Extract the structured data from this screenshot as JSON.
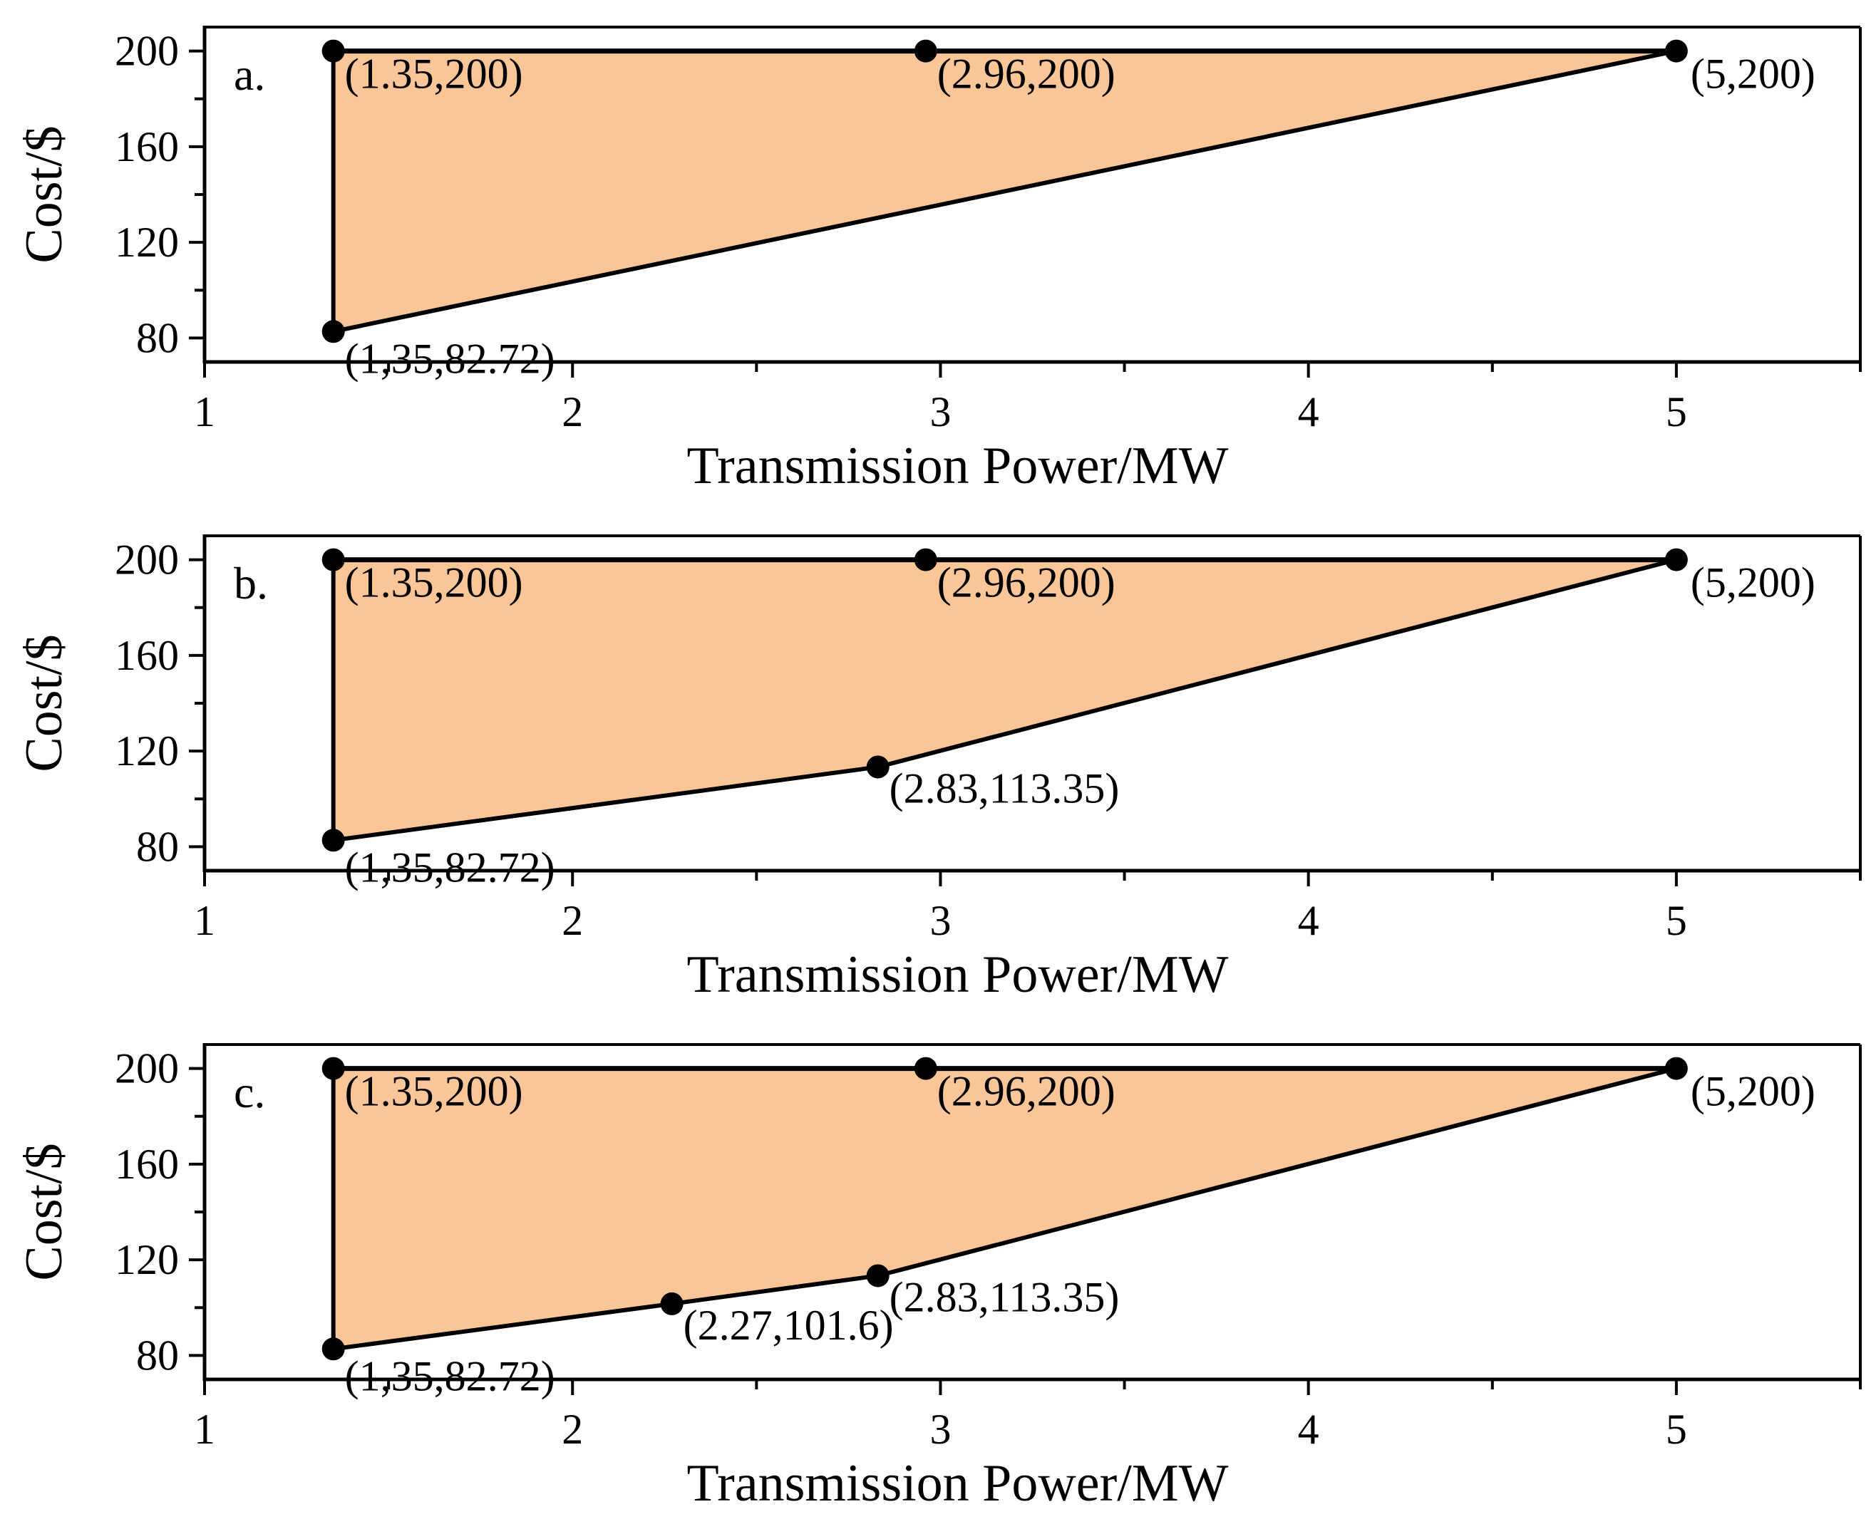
{
  "colors": {
    "fill": "#FBC697",
    "stroke": "#000000",
    "background": "#FFFFFF"
  },
  "chart_data": [
    {
      "type": "area",
      "panel": "a.",
      "xlabel": "Transmission Power/MW",
      "ylabel": "Cost/$",
      "xlim": [
        1,
        5.5
      ],
      "ylim": [
        70,
        210
      ],
      "xticks": [
        "1",
        "2",
        "3",
        "4",
        "5"
      ],
      "yticks": [
        "80",
        "120",
        "160",
        "200"
      ],
      "upper": [
        {
          "x": 1.35,
          "y": 200
        },
        {
          "x": 2.96,
          "y": 200
        },
        {
          "x": 5,
          "y": 200
        }
      ],
      "lower": [
        {
          "x": 1.35,
          "y": 82.72
        },
        {
          "x": 5,
          "y": 200
        }
      ],
      "points": [
        {
          "x": 1.35,
          "y": 200,
          "label": "(1.35,200)"
        },
        {
          "x": 2.96,
          "y": 200,
          "label": "(2.96,200)"
        },
        {
          "x": 5,
          "y": 200,
          "label": "(5,200)"
        },
        {
          "x": 1.35,
          "y": 82.72,
          "label": "(1,35,82.72)"
        }
      ]
    },
    {
      "type": "area",
      "panel": "b.",
      "xlabel": "Transmission Power/MW",
      "ylabel": "Cost/$",
      "xlim": [
        1,
        5.5
      ],
      "ylim": [
        70,
        210
      ],
      "xticks": [
        "1",
        "2",
        "3",
        "4",
        "5"
      ],
      "yticks": [
        "80",
        "120",
        "160",
        "200"
      ],
      "upper": [
        {
          "x": 1.35,
          "y": 200
        },
        {
          "x": 2.96,
          "y": 200
        },
        {
          "x": 5,
          "y": 200
        }
      ],
      "lower": [
        {
          "x": 1.35,
          "y": 82.72
        },
        {
          "x": 2.83,
          "y": 113.35
        },
        {
          "x": 5,
          "y": 200
        }
      ],
      "points": [
        {
          "x": 1.35,
          "y": 200,
          "label": "(1.35,200)"
        },
        {
          "x": 2.96,
          "y": 200,
          "label": "(2.96,200)"
        },
        {
          "x": 5,
          "y": 200,
          "label": "(5,200)"
        },
        {
          "x": 2.83,
          "y": 113.35,
          "label": "(2.83,113.35)"
        },
        {
          "x": 1.35,
          "y": 82.72,
          "label": "(1,35,82.72)"
        }
      ]
    },
    {
      "type": "area",
      "panel": "c.",
      "xlabel": "Transmission Power/MW",
      "ylabel": "Cost/$",
      "xlim": [
        1,
        5.5
      ],
      "ylim": [
        70,
        210
      ],
      "xticks": [
        "1",
        "2",
        "3",
        "4",
        "5"
      ],
      "yticks": [
        "80",
        "120",
        "160",
        "200"
      ],
      "upper": [
        {
          "x": 1.35,
          "y": 200
        },
        {
          "x": 2.96,
          "y": 200
        },
        {
          "x": 5,
          "y": 200
        }
      ],
      "lower": [
        {
          "x": 1.35,
          "y": 82.72
        },
        {
          "x": 2.27,
          "y": 101.6
        },
        {
          "x": 2.83,
          "y": 113.35
        },
        {
          "x": 5,
          "y": 200
        }
      ],
      "points": [
        {
          "x": 1.35,
          "y": 200,
          "label": "(1.35,200)"
        },
        {
          "x": 2.96,
          "y": 200,
          "label": "(2.96,200)"
        },
        {
          "x": 5,
          "y": 200,
          "label": "(5,200)"
        },
        {
          "x": 2.83,
          "y": 113.35,
          "label": "(2.83,113.35)"
        },
        {
          "x": 2.27,
          "y": 101.6,
          "label": "(2.27,101.6)"
        },
        {
          "x": 1.35,
          "y": 82.72,
          "label": "(1,35,82.72)"
        }
      ]
    }
  ]
}
